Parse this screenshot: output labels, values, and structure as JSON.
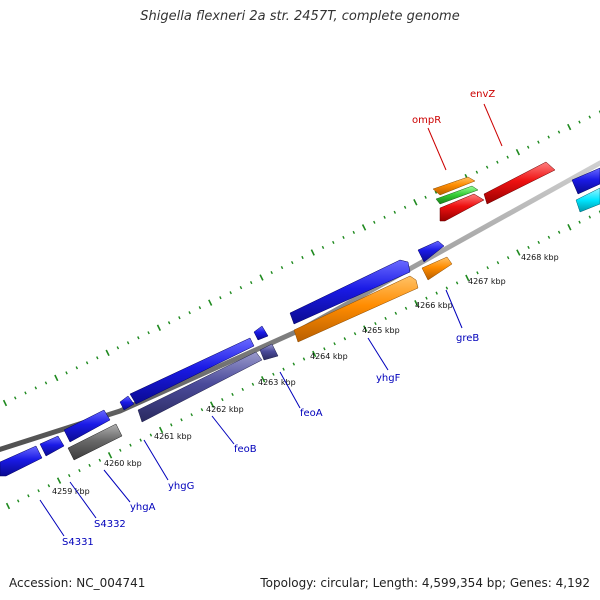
{
  "title": "Shigella flexneri 2a str. 2457T, complete genome",
  "footer": {
    "accession": "Accession: NC_004741",
    "summary": "Topology: circular; Length: 4,599,354 bp; Genes: 4,192"
  },
  "colors": {
    "backbone": "#8a8a8a",
    "tick": "#1f8a1f",
    "cds_blue": "#1a1ae6",
    "orange": "#ff8c00",
    "green": "#33cc33",
    "red": "#ee1111",
    "slate": "#4b4b9b",
    "gray": "#6a6a6a",
    "cyan": "#00e5ff",
    "label_blue": "#0000bb",
    "label_red": "#cc0000"
  },
  "scale_labels": [
    "4259 kbp",
    "4260 kbp",
    "4261 kbp",
    "4262 kbp",
    "4263 kbp",
    "4264 kbp",
    "4265 kbp",
    "4266 kbp",
    "4267 kbp",
    "4268 kbp"
  ],
  "gene_labels": {
    "S4331": "S4331",
    "S4332": "S4332",
    "yhgA": "yhgA",
    "yhgG": "yhgG",
    "feoB": "feoB",
    "feoA": "feoA",
    "yhgF": "yhgF",
    "greB": "greB",
    "ompR": "ompR",
    "envZ": "envZ"
  }
}
